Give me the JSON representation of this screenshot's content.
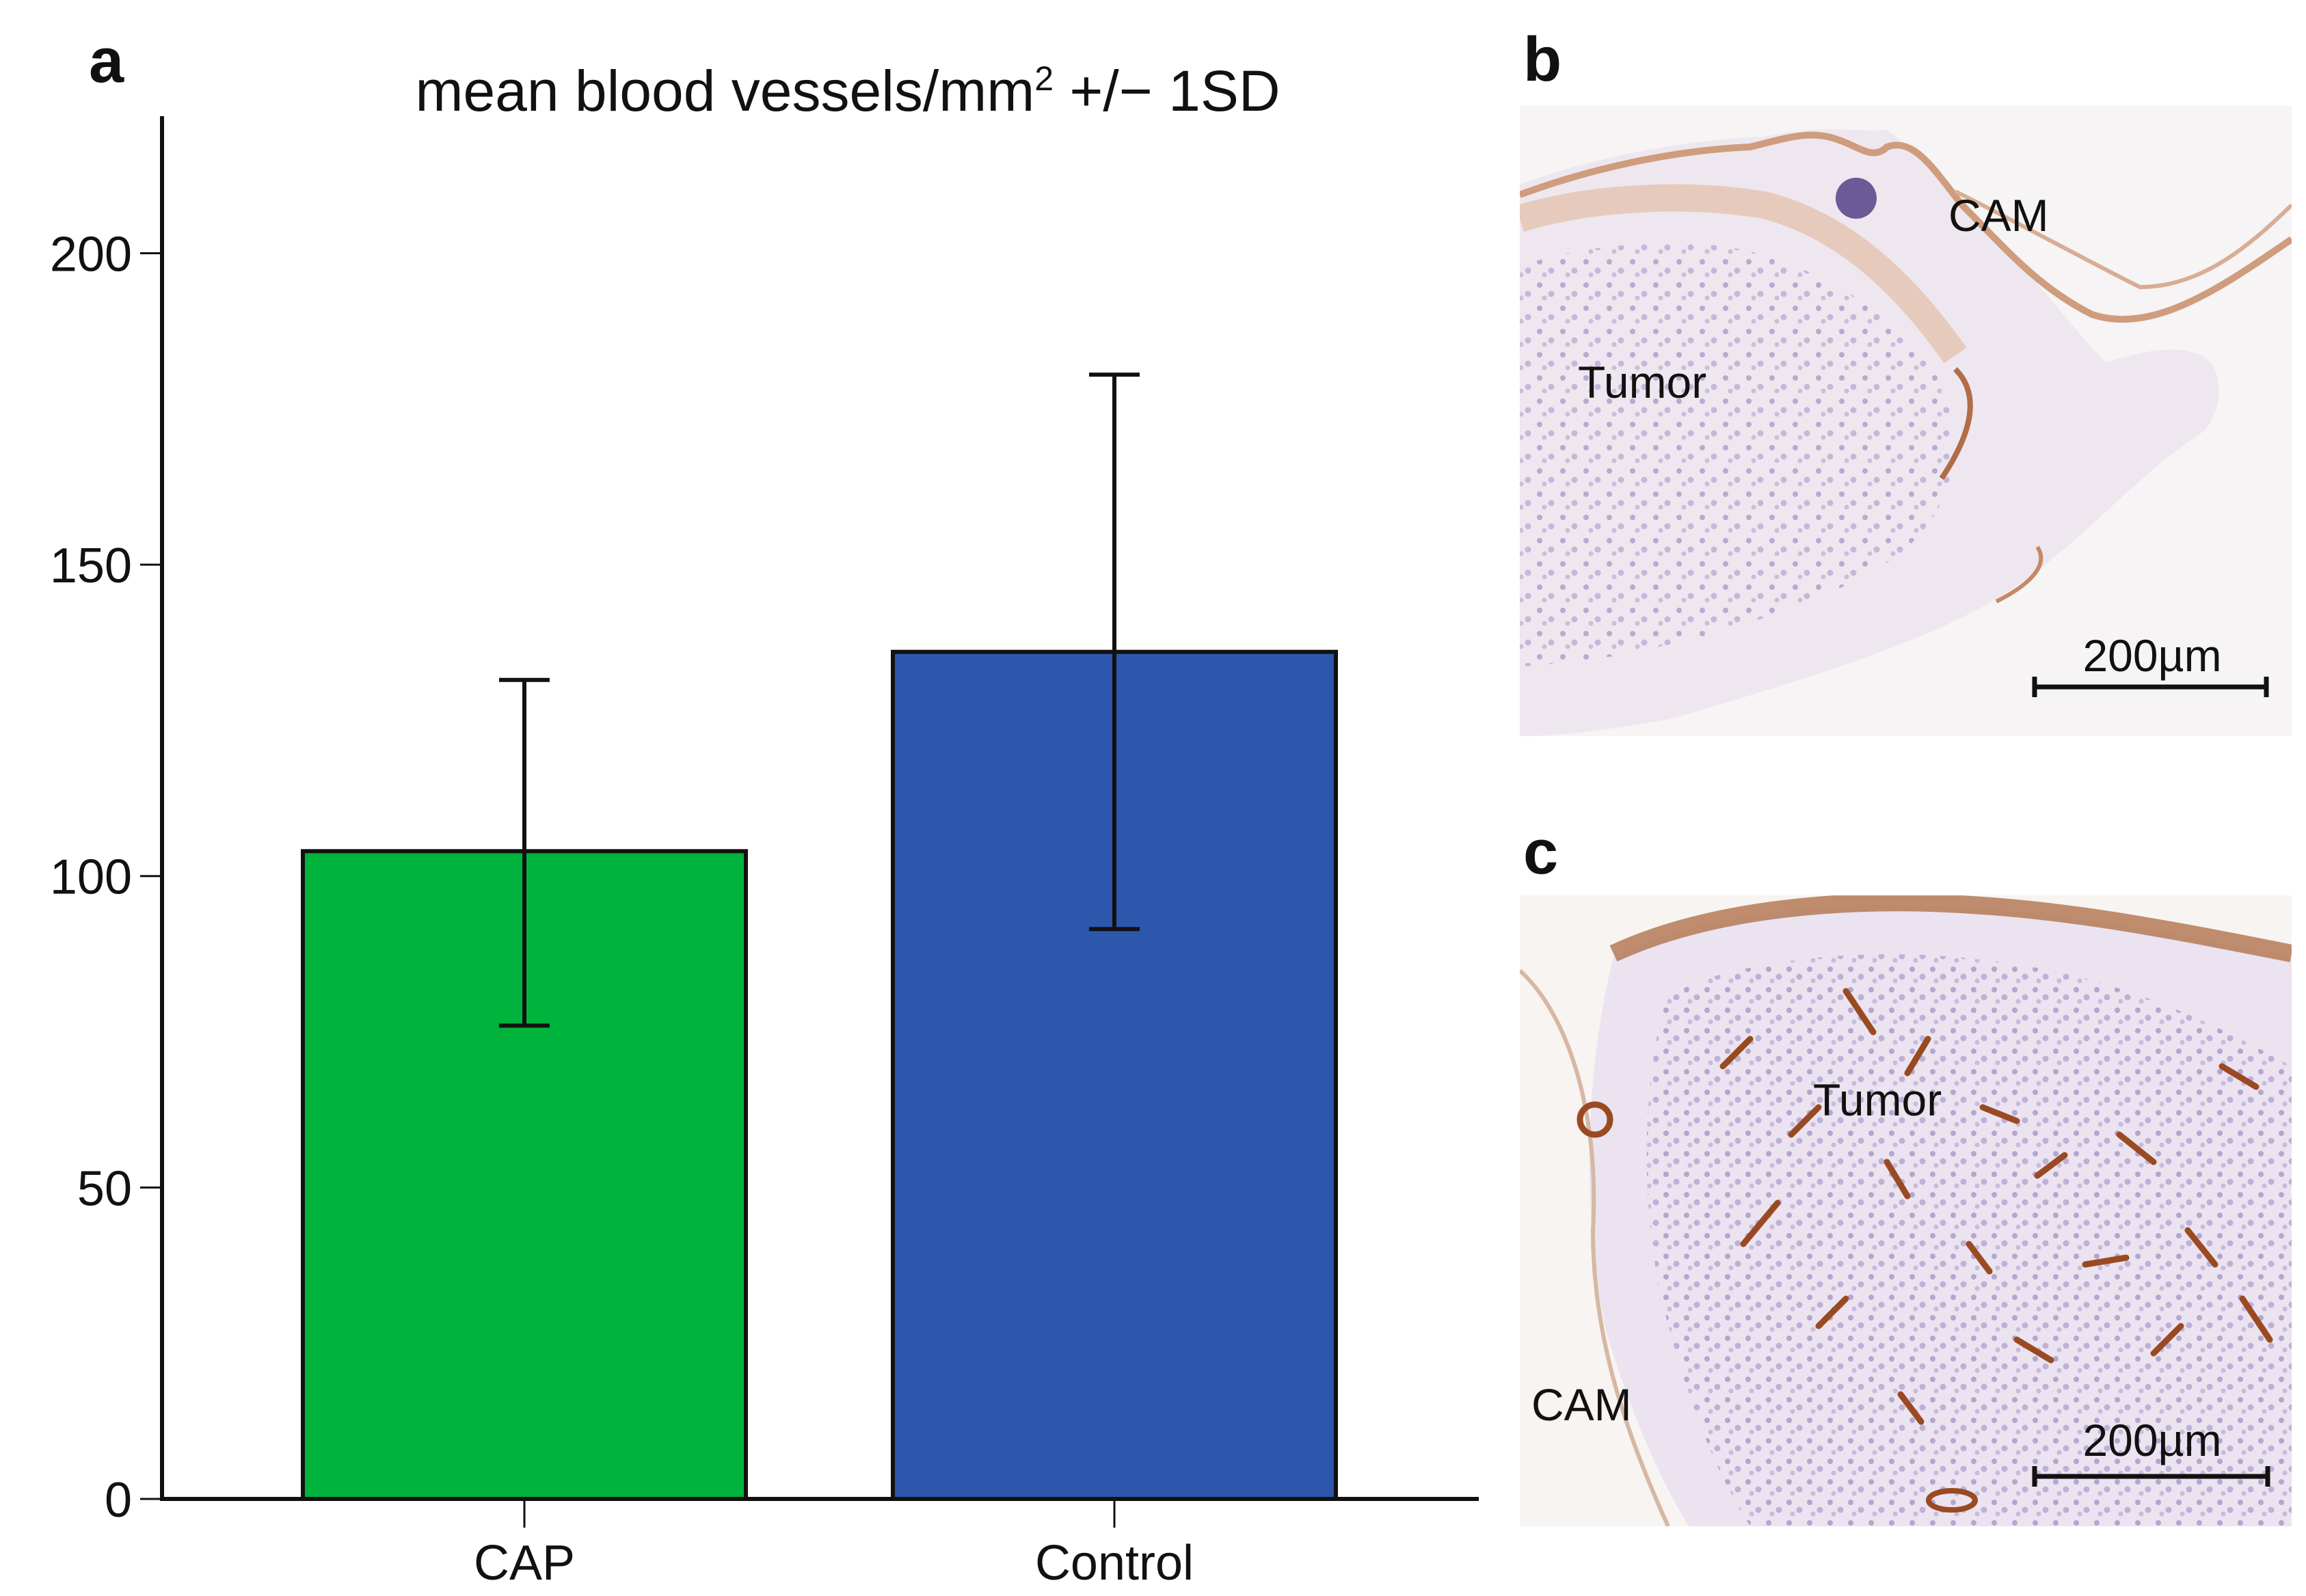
{
  "figure": {
    "panels": {
      "a": "a",
      "b": "b",
      "c": "c"
    }
  },
  "chart_data": {
    "type": "bar",
    "title": "mean blood vessels/mm² +/− 1SD",
    "title_parts": {
      "main": "mean blood vessels/mm",
      "sup": "2",
      "rest": " +/− 1SD"
    },
    "categories": [
      "CAP",
      "Control"
    ],
    "values": [
      104,
      136
    ],
    "error_low": [
      76,
      91.5
    ],
    "error_high": [
      131.5,
      180.5
    ],
    "bar_colors": [
      "#00b33c",
      "#2c57ad"
    ],
    "ylim": [
      0,
      222
    ],
    "yticks": [
      0,
      50,
      100,
      150,
      200
    ],
    "xlabel": "",
    "ylabel": ""
  },
  "micrographs": {
    "b": {
      "labels": {
        "cam": "CAM",
        "tumor": "Tumor"
      },
      "scale_bar": "200µm"
    },
    "c": {
      "labels": {
        "cam": "CAM",
        "tumor": "Tumor"
      },
      "scale_bar": "200µm"
    }
  },
  "colors": {
    "tissue_fill": "#ece6f0",
    "membrane": "#d9aa8d",
    "vessel": "#9a4a22",
    "nuclei": "#6a5a9a"
  }
}
